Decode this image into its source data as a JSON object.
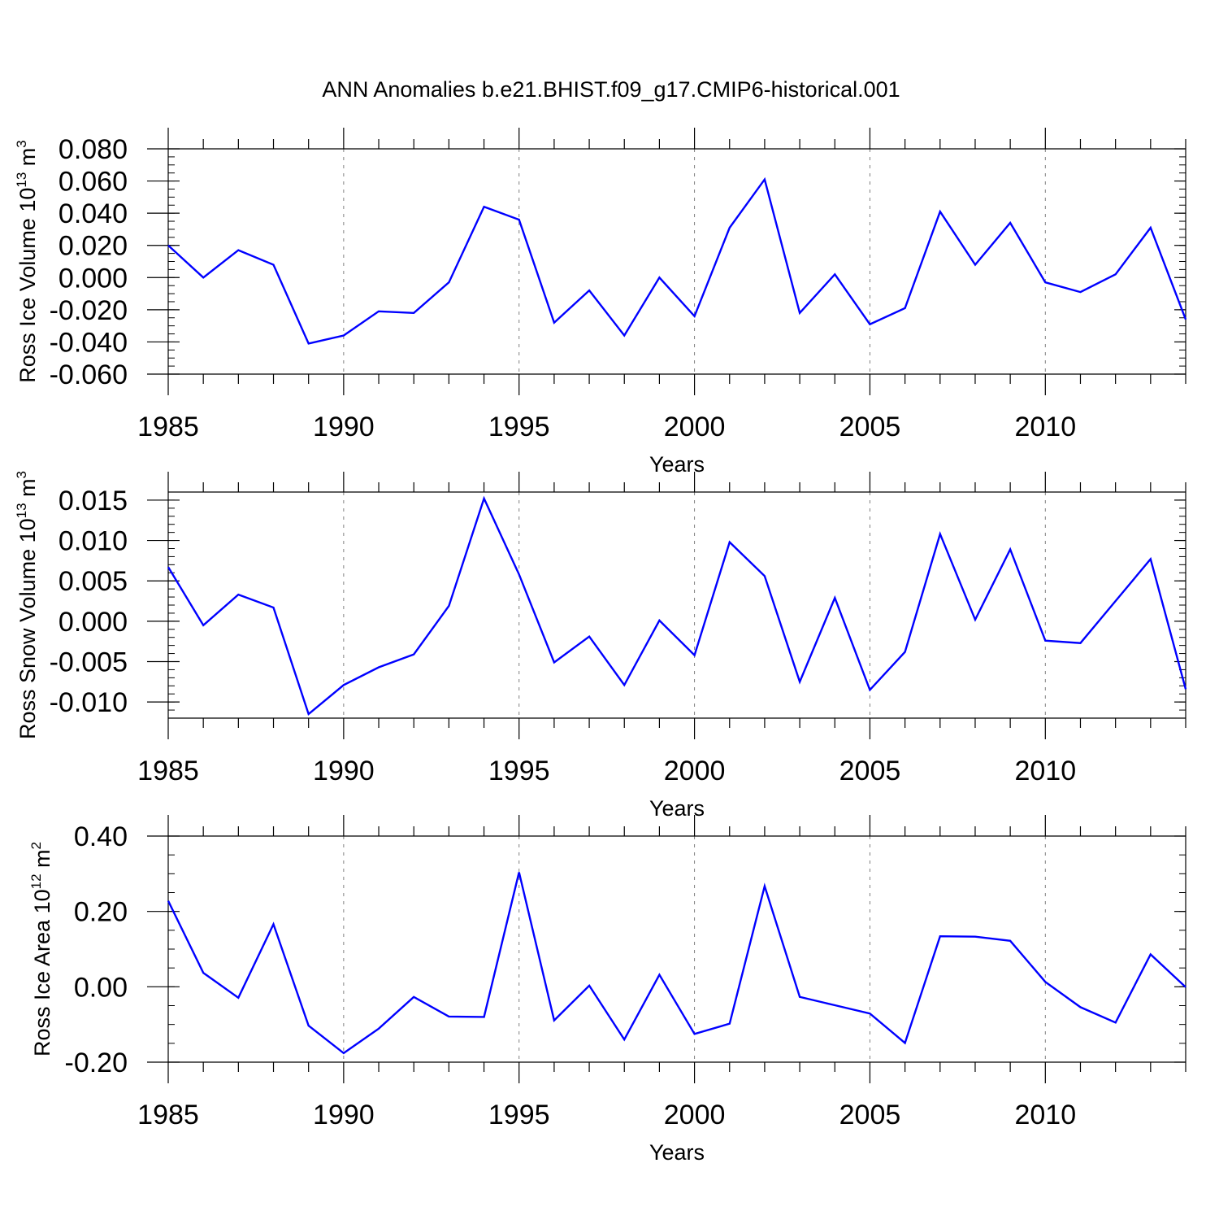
{
  "title": "ANN Anomalies b.e21.BHIST.f09_g17.CMIP6-historical.001",
  "colors": {
    "line": "#0000ff",
    "axis": "#000000",
    "grid": "#808080",
    "background": "#ffffff"
  },
  "chart_data": [
    {
      "type": "line",
      "xlabel": "Years",
      "ylabel_main": "Ross Ice Volume 10",
      "ylabel_sup": "13",
      "ylabel_unit": " m",
      "ylabel_unit_sup": "3",
      "xlim": [
        1985,
        2014
      ],
      "ylim": [
        -0.06,
        0.08
      ],
      "x_ticks": [
        "1985",
        "1990",
        "1995",
        "2000",
        "2005",
        "2010"
      ],
      "y_ticks": [
        "0.080",
        "0.060",
        "0.040",
        "0.020",
        "0.000",
        "-0.020",
        "-0.040",
        "-0.060"
      ],
      "grid": "vertical dashed at labeled years",
      "x": [
        1985,
        1986,
        1987,
        1988,
        1989,
        1990,
        1991,
        1992,
        1993,
        1994,
        1995,
        1996,
        1997,
        1998,
        1999,
        2000,
        2001,
        2002,
        2003,
        2004,
        2005,
        2006,
        2007,
        2008,
        2009,
        2010,
        2011,
        2012,
        2013,
        2014
      ],
      "values": [
        0.02,
        0.0,
        0.017,
        0.008,
        -0.041,
        -0.036,
        -0.021,
        -0.022,
        -0.003,
        0.044,
        0.036,
        -0.028,
        -0.008,
        -0.036,
        0.0,
        -0.024,
        0.031,
        0.061,
        -0.022,
        0.002,
        -0.029,
        -0.019,
        0.041,
        0.008,
        0.034,
        -0.003,
        -0.009,
        0.002,
        0.031,
        -0.026
      ]
    },
    {
      "type": "line",
      "xlabel": "Years",
      "ylabel_main": "Ross Snow Volume 10",
      "ylabel_sup": "13",
      "ylabel_unit": " m",
      "ylabel_unit_sup": "3",
      "xlim": [
        1985,
        2014
      ],
      "ylim": [
        -0.012,
        0.016
      ],
      "x_ticks": [
        "1985",
        "1990",
        "1995",
        "2000",
        "2005",
        "2010"
      ],
      "y_ticks": [
        "0.015",
        "0.010",
        "0.005",
        "0.000",
        "-0.005",
        "-0.010"
      ],
      "grid": "vertical dashed at labeled years",
      "x": [
        1985,
        1986,
        1987,
        1988,
        1989,
        1990,
        1991,
        1992,
        1993,
        1994,
        1995,
        1996,
        1997,
        1998,
        1999,
        2000,
        2001,
        2002,
        2003,
        2004,
        2005,
        2006,
        2007,
        2008,
        2009,
        2010,
        2011,
        2012,
        2013,
        2014
      ],
      "values": [
        0.0067,
        -0.0005,
        0.0033,
        0.0017,
        -0.0115,
        -0.0079,
        -0.0057,
        -0.0041,
        0.0019,
        0.0152,
        0.0058,
        -0.0051,
        -0.0019,
        -0.0079,
        0.0001,
        -0.0042,
        0.0098,
        0.0056,
        -0.0075,
        0.0029,
        -0.0085,
        -0.0038,
        0.0108,
        0.0002,
        0.0089,
        -0.0024,
        -0.0027,
        0.0025,
        0.0077,
        -0.0084
      ]
    },
    {
      "type": "line",
      "xlabel": "Years",
      "ylabel_main": "Ross Ice Area 10",
      "ylabel_sup": "12",
      "ylabel_unit": " m",
      "ylabel_unit_sup": "2",
      "xlim": [
        1985,
        2014
      ],
      "ylim": [
        -0.2,
        0.4
      ],
      "x_ticks": [
        "1985",
        "1990",
        "1995",
        "2000",
        "2005",
        "2010"
      ],
      "y_ticks": [
        "0.40",
        "0.20",
        "0.00",
        "-0.20"
      ],
      "grid": "vertical dashed at labeled years",
      "x": [
        1985,
        1986,
        1987,
        1988,
        1989,
        1990,
        1991,
        1992,
        1993,
        1994,
        1995,
        1996,
        1997,
        1998,
        1999,
        2000,
        2001,
        2002,
        2003,
        2004,
        2005,
        2006,
        2007,
        2008,
        2009,
        2010,
        2011,
        2012,
        2013,
        2014
      ],
      "values": [
        0.228,
        0.037,
        -0.029,
        0.166,
        -0.103,
        -0.176,
        -0.111,
        -0.027,
        -0.079,
        -0.08,
        0.304,
        -0.089,
        0.003,
        -0.14,
        0.032,
        -0.125,
        -0.098,
        0.267,
        -0.027,
        -0.049,
        -0.071,
        -0.149,
        0.134,
        0.133,
        0.122,
        0.013,
        -0.054,
        -0.095,
        0.086,
        -0.001
      ]
    }
  ]
}
